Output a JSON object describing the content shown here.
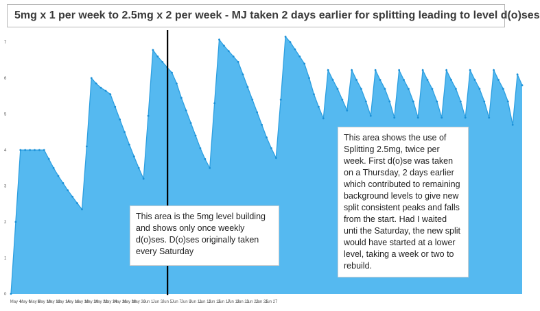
{
  "title": "5mg x 1 per week to 2.5mg x 2 per week - MJ taken 2 days earlier for splitting leading to level d(o)ses",
  "note_left": "This area is the 5mg level building and shows only once weekly d(o)ses. D(o)ses originally taken every Saturday",
  "note_right": "This area shows the use of Splitting 2.5mg, twice per week. First d(o)se was taken on a Thursday, 2 days earlier which contributed to remaining background levels to give new split consistent peaks and falls from the start. Had I waited unti the Saturday, the new split would have started at a lower level, taking a week or two to rebuild.",
  "colors": {
    "area": "#55b9f0",
    "line": "#2d9fe0",
    "marker": "#1a8fd6",
    "divider": "#000000"
  },
  "chart_data": {
    "type": "area",
    "title": "5mg x 1 per week to 2.5mg x 2 per week - MJ taken 2 days earlier for splitting leading to level d(o)ses",
    "xlabel": "",
    "ylabel": "",
    "ylim": [
      0,
      8
    ],
    "yticks": [
      0,
      1,
      2,
      3,
      4,
      5,
      6,
      7
    ],
    "grid": false,
    "x_tick_labels": [
      "May 4",
      "May 6",
      "May 8",
      "May 10",
      "May 12",
      "May 14",
      "May 16",
      "May 18",
      "May 20",
      "May 22",
      "May 24",
      "May 26",
      "May 28",
      "May 30",
      "Jun 1",
      "Jun 3",
      "Jun 5",
      "Jun 7",
      "Jun 9",
      "Jun 11",
      "Jun 13",
      "Jun 15",
      "Jun 17",
      "Jun 19",
      "Jun 21",
      "Jun 23",
      "Jun 25",
      "Jun 27"
    ],
    "x_start_label": "May 3",
    "divider_at_label": "Jun 5",
    "series": [
      {
        "values": [
          0.0,
          2.0,
          4.0,
          4.0,
          4.0,
          4.0,
          4.0,
          4.0,
          3.75,
          3.5,
          3.28,
          3.08,
          2.88,
          2.7,
          2.52,
          2.35,
          4.1,
          6.0,
          5.85,
          5.73,
          5.65,
          5.55,
          5.2,
          4.85,
          4.5,
          4.15,
          3.82,
          3.5,
          3.2,
          4.95,
          6.78,
          6.6,
          6.45,
          6.3,
          6.15,
          5.85,
          5.45,
          5.1,
          4.75,
          4.4,
          4.05,
          3.75,
          3.5,
          5.3,
          7.07,
          6.9,
          6.75,
          6.6,
          6.45,
          6.1,
          5.75,
          5.4,
          5.05,
          4.7,
          4.35,
          4.05,
          3.78,
          5.4,
          7.15,
          7.0,
          6.8,
          6.6,
          6.4,
          6.0,
          5.55,
          5.2,
          4.88,
          6.22,
          5.95,
          5.7,
          5.4,
          5.1,
          6.22,
          5.95,
          5.7,
          5.35,
          4.95,
          6.22,
          5.95,
          5.7,
          5.35,
          4.9,
          6.22,
          5.95,
          5.7,
          5.35,
          4.9,
          6.22,
          5.95,
          5.7,
          5.35,
          4.9,
          6.22,
          5.95,
          5.7,
          5.35,
          4.9,
          6.22,
          5.95,
          5.7,
          5.35,
          4.9,
          6.22,
          5.95,
          5.7,
          5.35,
          4.7,
          6.1,
          5.8
        ]
      }
    ]
  }
}
